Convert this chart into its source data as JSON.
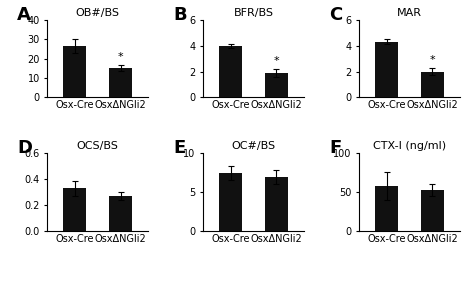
{
  "panels": [
    {
      "label": "A",
      "title": "OB#/BS",
      "categories": [
        "Osx-Cre",
        "OsxΔNGli2"
      ],
      "values": [
        26.5,
        15.0
      ],
      "errors": [
        3.5,
        1.5
      ],
      "ylim": [
        0,
        40
      ],
      "yticks": [
        0,
        10,
        20,
        30,
        40
      ],
      "star_on": [
        false,
        true
      ]
    },
    {
      "label": "B",
      "title": "BFR/BS",
      "categories": [
        "Osx-Cre",
        "OsxΔNGli2"
      ],
      "values": [
        4.0,
        1.9
      ],
      "errors": [
        0.15,
        0.3
      ],
      "ylim": [
        0,
        6
      ],
      "yticks": [
        0,
        2,
        4,
        6
      ],
      "star_on": [
        false,
        true
      ]
    },
    {
      "label": "C",
      "title": "MAR",
      "categories": [
        "Osx-Cre",
        "OsxΔNGli2"
      ],
      "values": [
        4.3,
        2.0
      ],
      "errors": [
        0.2,
        0.25
      ],
      "ylim": [
        0,
        6
      ],
      "yticks": [
        0,
        2,
        4,
        6
      ],
      "star_on": [
        false,
        true
      ]
    },
    {
      "label": "D",
      "title": "OCS/BS",
      "categories": [
        "Osx-Cre",
        "OsxΔNGli2"
      ],
      "values": [
        0.33,
        0.27
      ],
      "errors": [
        0.06,
        0.03
      ],
      "ylim": [
        0,
        0.6
      ],
      "yticks": [
        0,
        0.2,
        0.4,
        0.6
      ],
      "star_on": [
        false,
        false
      ]
    },
    {
      "label": "E",
      "title": "OC#/BS",
      "categories": [
        "Osx-Cre",
        "OsxΔNGli2"
      ],
      "values": [
        7.5,
        7.0
      ],
      "errors": [
        0.9,
        0.9
      ],
      "ylim": [
        0,
        10
      ],
      "yticks": [
        0,
        5,
        10
      ],
      "star_on": [
        false,
        false
      ]
    },
    {
      "label": "F",
      "title": "CTX-I (ng/ml)",
      "categories": [
        "Osx-Cre",
        "OsxΔNGli2"
      ],
      "values": [
        58.0,
        53.0
      ],
      "errors": [
        18.0,
        8.0
      ],
      "ylim": [
        0,
        100
      ],
      "yticks": [
        0,
        50,
        100
      ],
      "star_on": [
        false,
        false
      ]
    }
  ],
  "bar_color": "#111111",
  "bar_width": 0.5,
  "fig_bg": "#ffffff",
  "label_fontsize": 13,
  "title_fontsize": 8,
  "tick_fontsize": 7,
  "xticklabel_fontsize": 7,
  "star_fontsize": 8
}
